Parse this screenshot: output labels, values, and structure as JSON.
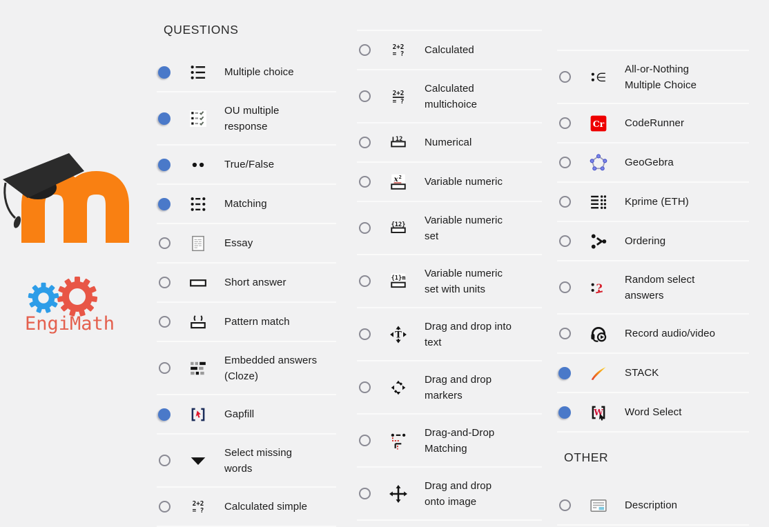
{
  "page": {
    "background_color": "#f1f1f2",
    "accent_blue": "#4a79c9",
    "divider_color": "#fafafa"
  },
  "branding": {
    "moodle_logo": "moodle-m-with-graduation-cap",
    "moodle_orange": "#f98012",
    "engimath_text": "EngiMath",
    "engimath_text_color": "#e4604e",
    "gear_blue": "#2d9de8",
    "gear_red": "#e85646"
  },
  "columns": [
    {
      "name": "questions-left",
      "entries": [
        {
          "type": "header",
          "label": "QUESTIONS"
        },
        {
          "type": "item",
          "lines": [
            "Multiple choice"
          ],
          "selected": true,
          "icon": "multiple-choice-icon"
        },
        {
          "type": "item",
          "lines": [
            "OU multiple",
            "response"
          ],
          "selected": true,
          "icon": "ou-multiple-response-icon"
        },
        {
          "type": "item",
          "lines": [
            "True/False"
          ],
          "selected": true,
          "icon": "true-false-icon"
        },
        {
          "type": "item",
          "lines": [
            "Matching"
          ],
          "selected": true,
          "icon": "matching-icon"
        },
        {
          "type": "item",
          "lines": [
            "Essay"
          ],
          "selected": false,
          "icon": "essay-icon"
        },
        {
          "type": "item",
          "lines": [
            "Short answer"
          ],
          "selected": false,
          "icon": "short-answer-icon"
        },
        {
          "type": "item",
          "lines": [
            "Pattern match"
          ],
          "selected": false,
          "icon": "pattern-match-icon"
        },
        {
          "type": "item",
          "lines": [
            "Embedded answers",
            "(Cloze)"
          ],
          "selected": false,
          "icon": "cloze-icon"
        },
        {
          "type": "item",
          "lines": [
            "Gapfill"
          ],
          "selected": true,
          "icon": "gapfill-icon"
        },
        {
          "type": "item",
          "lines": [
            "Select missing",
            "words"
          ],
          "selected": false,
          "icon": "select-missing-words-icon"
        },
        {
          "type": "item",
          "lines": [
            "Calculated simple"
          ],
          "selected": false,
          "icon": "calculated-simple-icon"
        }
      ]
    },
    {
      "name": "questions-middle",
      "entries": [
        {
          "type": "item",
          "lines": [
            "Calculated"
          ],
          "selected": false,
          "icon": "calculated-icon"
        },
        {
          "type": "item",
          "lines": [
            "Calculated",
            "multichoice"
          ],
          "selected": false,
          "icon": "calculated-multichoice-icon"
        },
        {
          "type": "item",
          "lines": [
            "Numerical"
          ],
          "selected": false,
          "icon": "numerical-icon"
        },
        {
          "type": "item",
          "lines": [
            "Variable numeric"
          ],
          "selected": false,
          "icon": "variable-numeric-icon"
        },
        {
          "type": "item",
          "lines": [
            "Variable numeric",
            "set"
          ],
          "selected": false,
          "icon": "variable-numeric-set-icon"
        },
        {
          "type": "item",
          "lines": [
            "Variable numeric",
            "set with units"
          ],
          "selected": false,
          "icon": "variable-numeric-set-units-icon"
        },
        {
          "type": "item",
          "lines": [
            "Drag and drop into",
            "text"
          ],
          "selected": false,
          "icon": "drag-drop-into-text-icon"
        },
        {
          "type": "item",
          "lines": [
            "Drag and drop",
            "markers"
          ],
          "selected": false,
          "icon": "drag-drop-markers-icon"
        },
        {
          "type": "item",
          "lines": [
            "Drag-and-Drop",
            "Matching"
          ],
          "selected": false,
          "icon": "drag-drop-matching-icon"
        },
        {
          "type": "item",
          "lines": [
            "Drag and drop",
            "onto image"
          ],
          "selected": false,
          "icon": "drag-drop-onto-image-icon"
        }
      ]
    },
    {
      "name": "questions-right",
      "entries": [
        {
          "type": "item",
          "lines": [
            "All-or-Nothing",
            "Multiple Choice"
          ],
          "selected": false,
          "icon": "all-or-nothing-multiple-choice-icon"
        },
        {
          "type": "item",
          "lines": [
            "CodeRunner"
          ],
          "selected": false,
          "icon": "coderunner-icon"
        },
        {
          "type": "item",
          "lines": [
            "GeoGebra"
          ],
          "selected": false,
          "icon": "geogebra-icon"
        },
        {
          "type": "item",
          "lines": [
            "Kprime (ETH)"
          ],
          "selected": false,
          "icon": "kprime-icon"
        },
        {
          "type": "item",
          "lines": [
            "Ordering"
          ],
          "selected": false,
          "icon": "ordering-icon"
        },
        {
          "type": "item",
          "lines": [
            "Random select",
            "answers"
          ],
          "selected": false,
          "icon": "random-select-answers-icon"
        },
        {
          "type": "item",
          "lines": [
            "Record audio/video"
          ],
          "selected": false,
          "icon": "record-audio-video-icon"
        },
        {
          "type": "item",
          "lines": [
            "STACK"
          ],
          "selected": true,
          "icon": "stack-icon"
        },
        {
          "type": "item",
          "lines": [
            "Word Select"
          ],
          "selected": true,
          "icon": "word-select-icon"
        },
        {
          "type": "header",
          "label": "OTHER"
        },
        {
          "type": "item",
          "lines": [
            "Description"
          ],
          "selected": false,
          "icon": "description-icon"
        }
      ]
    }
  ]
}
